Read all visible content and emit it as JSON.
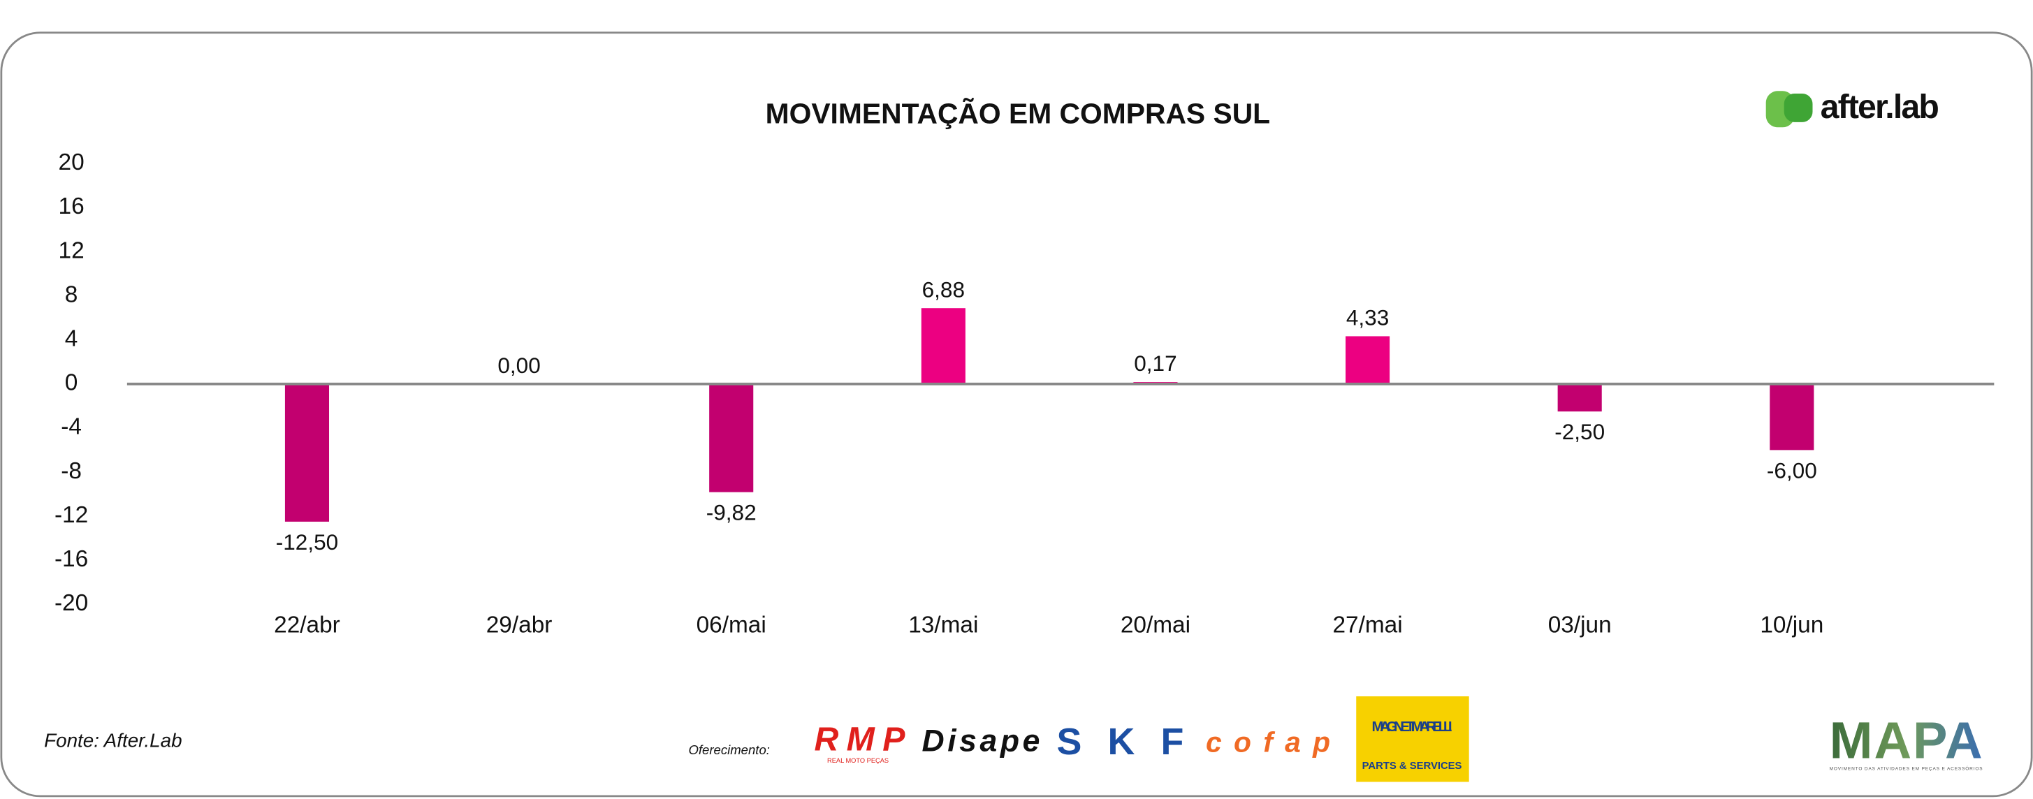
{
  "chart_data": {
    "type": "bar",
    "title": "MOVIMENTAÇÃO EM COMPRAS SUL",
    "categories": [
      "22/abr",
      "29/abr",
      "06/mai",
      "13/mai",
      "20/mai",
      "27/mai",
      "03/jun",
      "10/jun"
    ],
    "values": [
      -12.5,
      0,
      -9.82,
      6.88,
      0.17,
      4.33,
      -2.5,
      -6
    ],
    "value_labels": [
      "-12,50",
      "0,00",
      "-9,82",
      "6,88",
      "0,17",
      "4,33",
      "-2,50",
      "-6,00"
    ],
    "colors": [
      "#c2006f",
      "#ec0081",
      "#c2006f",
      "#ec0081",
      "#ec0081",
      "#ec0081",
      "#c2006f",
      "#c2006f"
    ],
    "ylim": [
      -20,
      20
    ],
    "yticks": [
      -20,
      -16,
      -12,
      -8,
      -4,
      0,
      4,
      8,
      12,
      16,
      20
    ],
    "grid": false
  },
  "branding": {
    "logo": "after.lab",
    "source": "Fonte: After.Lab",
    "sponsor_label": "Oferecimento:",
    "sponsors": [
      "RMP",
      "REAL MOTO PEÇAS",
      "Disape",
      "SKF",
      "cofap",
      "MAGNETI MARELLI",
      "PARTS & SERVICES"
    ],
    "footer_logo": "MAPA",
    "footer_tagline": "MOVIMENTO DAS ATIVIDADES EM PEÇAS E ACESSÓRIOS"
  }
}
